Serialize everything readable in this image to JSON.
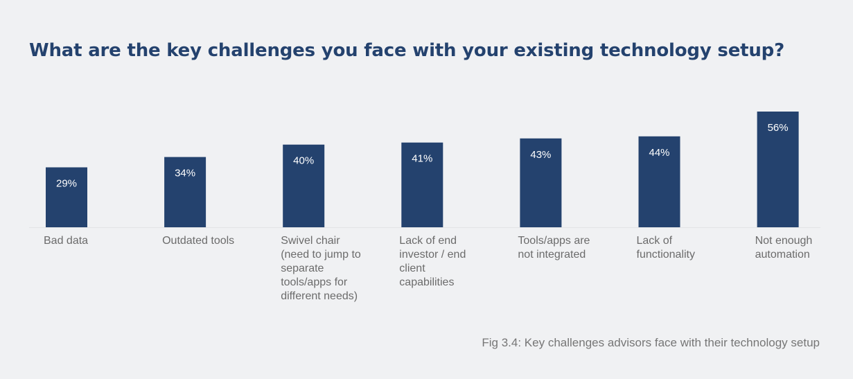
{
  "colors": {
    "bar": "#24426e",
    "axis": "#e2e3e6",
    "title": "#24426e"
  },
  "chart_data": {
    "type": "bar",
    "title": "What are the key challenges you face with your existing technology setup?",
    "categories": [
      "Bad data",
      "Outdated tools",
      "Swivel chair (need to jump to separate tools/apps for different needs)",
      "Lack of end investor / end client capabilities",
      "Tools/apps are not integrated",
      "Lack of functionality",
      "Not enough automation"
    ],
    "category_lines": [
      [
        "Bad data"
      ],
      [
        "Outdated tools"
      ],
      [
        "Swivel chair",
        "(need to jump to",
        "separate",
        "tools/apps for",
        "different needs)"
      ],
      [
        "Lack of end",
        "investor / end",
        "client",
        "capabilities"
      ],
      [
        "Tools/apps are",
        "not integrated"
      ],
      [
        "Lack of",
        "functionality"
      ],
      [
        "Not enough",
        "automation"
      ]
    ],
    "values": [
      29,
      34,
      40,
      41,
      43,
      44,
      56
    ],
    "value_labels": [
      "29%",
      "34%",
      "40%",
      "41%",
      "43%",
      "44%",
      "56%"
    ],
    "unit": "%",
    "ylim": [
      0,
      56
    ],
    "xlabel": "",
    "ylabel": "",
    "grid": false
  },
  "caption": "Fig 3.4: Key challenges advisors face with their technology setup"
}
